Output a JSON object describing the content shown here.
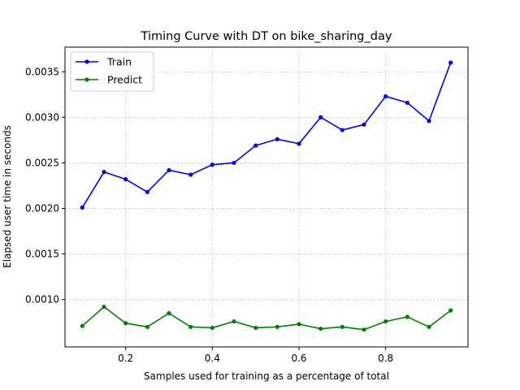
{
  "chart_data": {
    "type": "line",
    "title": "Timing Curve with DT on bike_sharing_day",
    "xlabel": "Samples used for training as a percentage of total",
    "ylabel": "Elapsed user time in seconds",
    "xlim": [
      0.06,
      0.99
    ],
    "ylim": [
      0.00048,
      0.00377
    ],
    "xticks": [
      0.2,
      0.4,
      0.6,
      0.8
    ],
    "xtick_labels": [
      "0.2",
      "0.4",
      "0.6",
      "0.8"
    ],
    "yticks": [
      0.001,
      0.0015,
      0.002,
      0.0025,
      0.003,
      0.0035
    ],
    "ytick_labels": [
      "0.0010",
      "0.0015",
      "0.0020",
      "0.0025",
      "0.0030",
      "0.0035"
    ],
    "grid": true,
    "legend_position": "top-left",
    "x": [
      0.1,
      0.15,
      0.2,
      0.25,
      0.3,
      0.35,
      0.4,
      0.45,
      0.5,
      0.55,
      0.6,
      0.65,
      0.7,
      0.75,
      0.8,
      0.85,
      0.9,
      0.95
    ],
    "series": [
      {
        "name": "Train",
        "color": "#0000ff",
        "values": [
          0.00201,
          0.0024,
          0.00232,
          0.00218,
          0.00242,
          0.00237,
          0.00248,
          0.0025,
          0.00269,
          0.00276,
          0.00271,
          0.003,
          0.00286,
          0.00292,
          0.00323,
          0.00316,
          0.00296,
          0.0036
        ]
      },
      {
        "name": "Predict",
        "color": "#008000",
        "values": [
          0.00071,
          0.00092,
          0.00074,
          0.0007,
          0.00085,
          0.0007,
          0.00069,
          0.00076,
          0.00069,
          0.0007,
          0.00073,
          0.00068,
          0.0007,
          0.00067,
          0.00076,
          0.00081,
          0.0007,
          0.00088
        ]
      }
    ]
  }
}
